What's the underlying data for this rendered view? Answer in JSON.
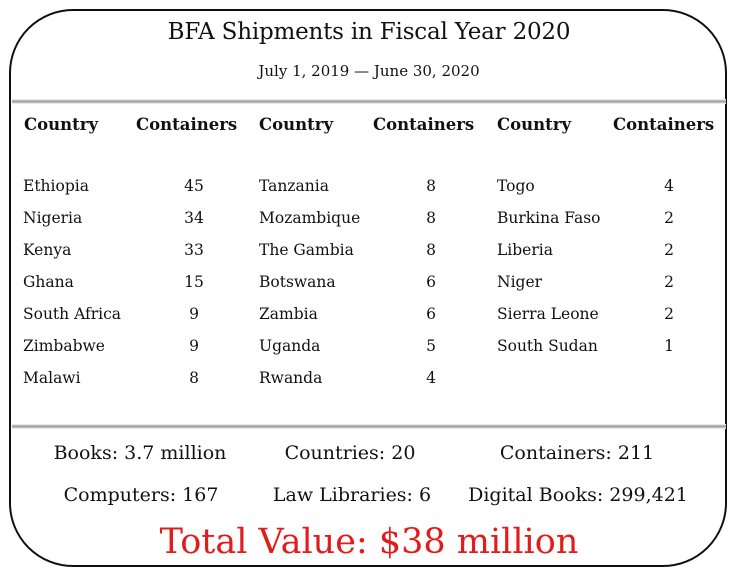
{
  "title": "BFA Shipments in Fiscal Year 2020",
  "dates": "July 1, 2019 — June 30, 2020",
  "headers": {
    "country": "Country",
    "containers": "Containers"
  },
  "columns": [
    [
      {
        "country": "Ethiopia",
        "containers": "45"
      },
      {
        "country": "Nigeria",
        "containers": "34"
      },
      {
        "country": "Kenya",
        "containers": "33"
      },
      {
        "country": "Ghana",
        "containers": "15"
      },
      {
        "country": "South Africa",
        "containers": "9"
      },
      {
        "country": "Zimbabwe",
        "containers": "9"
      },
      {
        "country": "Malawi",
        "containers": "8"
      }
    ],
    [
      {
        "country": "Tanzania",
        "containers": "8"
      },
      {
        "country": "Mozambique",
        "containers": "8"
      },
      {
        "country": "The Gambia",
        "containers": "8"
      },
      {
        "country": "Botswana",
        "containers": "6"
      },
      {
        "country": "Zambia",
        "containers": "6"
      },
      {
        "country": "Uganda",
        "containers": "5"
      },
      {
        "country": "Rwanda",
        "containers": "4"
      }
    ],
    [
      {
        "country": "Togo",
        "containers": "4"
      },
      {
        "country": "Burkina Faso",
        "containers": "2"
      },
      {
        "country": "Liberia",
        "containers": "2"
      },
      {
        "country": "Niger",
        "containers": "2"
      },
      {
        "country": "Sierra Leone",
        "containers": "2"
      },
      {
        "country": "South Sudan",
        "containers": "1"
      }
    ]
  ],
  "stats": {
    "books": "Books: 3.7 million",
    "countries": "Countries: 20",
    "containers": "Containers: 211",
    "computers": "Computers: 167",
    "law_libraries": "Law Libraries: 6",
    "digital_books": "Digital Books: 299,421"
  },
  "total_value": "Total Value: $38 million",
  "colors": {
    "total": "#e31b1b",
    "border": "#111111"
  }
}
